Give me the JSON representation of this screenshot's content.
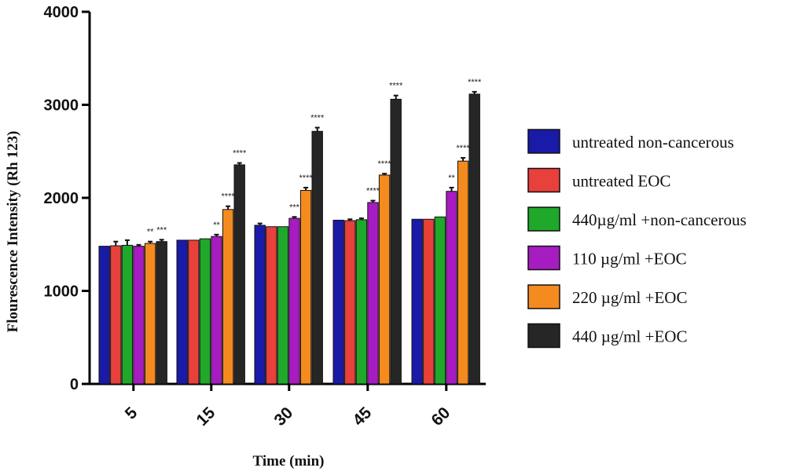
{
  "chart_data": {
    "type": "bar",
    "title": "",
    "xlabel": "Time (min)",
    "ylabel": "Flourescence Intensity (Rh 123)",
    "ylim": [
      0,
      4000
    ],
    "yticks": [
      0,
      1000,
      2000,
      3000,
      4000
    ],
    "categories": [
      "5",
      "15",
      "30",
      "45",
      "60"
    ],
    "legend_position": "right",
    "series": [
      {
        "name": "untreated non-cancerous",
        "color": "#1a1aa8",
        "values": [
          1480,
          1545,
          1705,
          1760,
          1770
        ],
        "errors": [
          0,
          0,
          20,
          0,
          0
        ],
        "significance": [
          "",
          "",
          "",
          "",
          ""
        ]
      },
      {
        "name": "untreated EOC",
        "color": "#e8403a",
        "values": [
          1485,
          1545,
          1690,
          1755,
          1770
        ],
        "errors": [
          45,
          0,
          0,
          15,
          0
        ],
        "significance": [
          "",
          "",
          "",
          "",
          ""
        ]
      },
      {
        "name": "440µg/ml +non-cancerous",
        "color": "#1fa82a",
        "values": [
          1490,
          1560,
          1690,
          1765,
          1795
        ],
        "errors": [
          55,
          0,
          0,
          15,
          0
        ],
        "significance": [
          "",
          "",
          "",
          "",
          ""
        ]
      },
      {
        "name": "110 µg/ml +EOC",
        "color": "#a71cc0",
        "values": [
          1480,
          1585,
          1780,
          1950,
          2070
        ],
        "errors": [
          15,
          20,
          15,
          20,
          40
        ],
        "significance": [
          "",
          "**",
          "***",
          "****",
          "**"
        ]
      },
      {
        "name": "220 µg/ml +EOC",
        "color": "#f58a1e",
        "values": [
          1510,
          1875,
          2080,
          2245,
          2395
        ],
        "errors": [
          20,
          35,
          30,
          15,
          35
        ],
        "significance": [
          "**",
          "****",
          "****",
          "****",
          "****"
        ]
      },
      {
        "name": "440 µg/ml +EOC",
        "color": "#262626",
        "values": [
          1530,
          2355,
          2715,
          3060,
          3115
        ],
        "errors": [
          20,
          20,
          40,
          40,
          25
        ],
        "significance": [
          "***",
          "****",
          "****",
          "****",
          "****"
        ]
      }
    ]
  }
}
